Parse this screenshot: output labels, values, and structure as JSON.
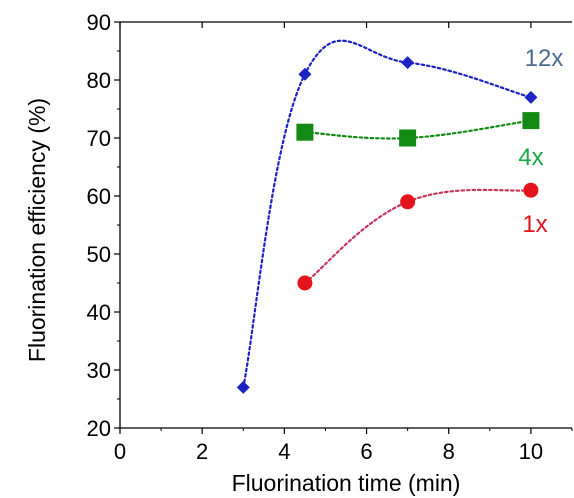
{
  "chart_data": {
    "type": "scatter",
    "xlabel": "Fluorination time (min)",
    "ylabel": "Fluorination efficiency (%)",
    "xlim": [
      0,
      11
    ],
    "ylim": [
      20,
      90
    ],
    "x_ticks": [
      0,
      2,
      4,
      6,
      8,
      10
    ],
    "y_ticks": [
      20,
      30,
      40,
      50,
      60,
      70,
      80,
      90
    ],
    "x_tick_labels": [
      "0",
      "2",
      "4",
      "6",
      "8",
      "10"
    ],
    "y_tick_labels": [
      "20",
      "30",
      "40",
      "50",
      "60",
      "70",
      "80",
      "90"
    ],
    "grid": false,
    "series": [
      {
        "name": "12x",
        "marker": "diamond",
        "color": "#1c22c4",
        "label_color": "#4a6a94",
        "x": [
          3,
          4.5,
          7,
          10
        ],
        "y": [
          27,
          81,
          83,
          77
        ]
      },
      {
        "name": "4x",
        "marker": "square",
        "color": "#138a13",
        "label_color": "#1aa84a",
        "x": [
          4.5,
          7,
          10
        ],
        "y": [
          71,
          70,
          73
        ]
      },
      {
        "name": "1x",
        "marker": "circle",
        "color": "#e3141c",
        "line_color": "#c8365a",
        "label_color": "#e3141c",
        "x": [
          4.5,
          7,
          10
        ],
        "y": [
          45,
          59,
          61
        ]
      }
    ]
  }
}
